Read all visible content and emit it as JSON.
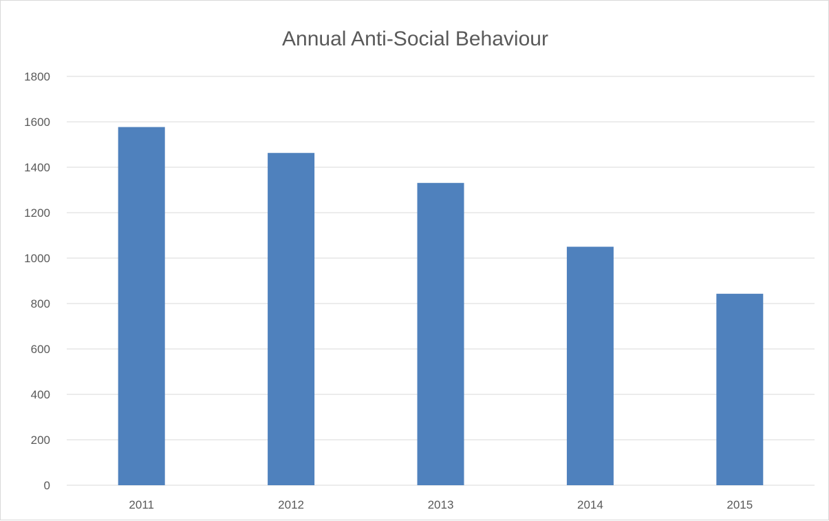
{
  "chart_data": {
    "type": "bar",
    "title": "Annual Anti-Social Behaviour",
    "xlabel": "",
    "ylabel": "",
    "categories": [
      "2011",
      "2012",
      "2013",
      "2014",
      "2015"
    ],
    "values": [
      1577,
      1463,
      1331,
      1050,
      843
    ],
    "ylim": [
      0,
      1800
    ],
    "yticks": [
      "0",
      "200",
      "400",
      "600",
      "800",
      "1000",
      "1200",
      "1400",
      "1600",
      "1800"
    ],
    "grid": true,
    "legend": "none",
    "bar_color": "#4f81bd",
    "grid_color": "#d9d9d9"
  }
}
